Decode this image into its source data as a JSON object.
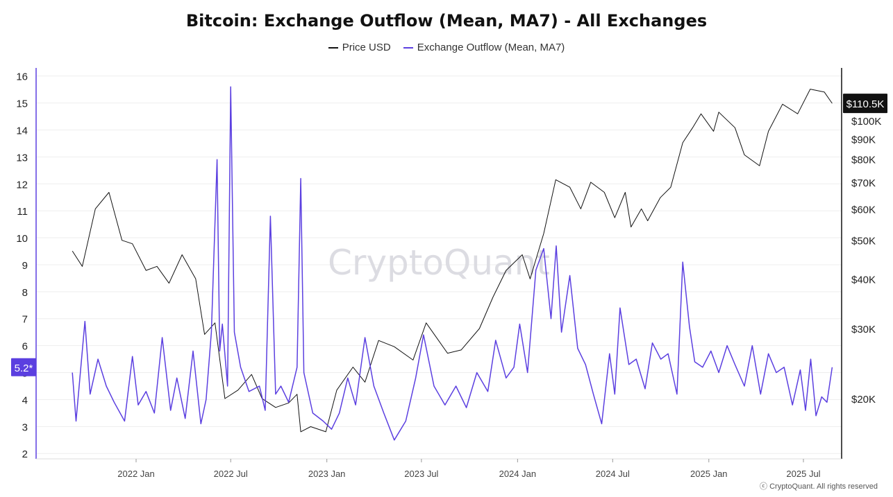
{
  "title": "Bitcoin: Exchange Outflow (Mean, MA7) - All Exchanges",
  "legend": [
    {
      "label": "Price USD",
      "color": "#111111"
    },
    {
      "label": "Exchange Outflow (Mean, MA7)",
      "color": "#5b3fe0"
    }
  ],
  "watermark": "CryptoQuant",
  "footer": "ⓒ CryptoQuant. All rights reserved",
  "chart_data": {
    "type": "line",
    "x_ticks": [
      "2022 Jan",
      "2022 Jul",
      "2023 Jan",
      "2023 Jul",
      "2024 Jan",
      "2024 Jul",
      "2025 Jan",
      "2025 Jul"
    ],
    "left_axis": {
      "ticks": [
        2,
        3,
        4,
        5,
        6,
        7,
        8,
        9,
        10,
        11,
        12,
        13,
        14,
        15,
        16
      ],
      "ylim": [
        1.8,
        16.3
      ]
    },
    "right_axis": {
      "scale": "log",
      "ticks": [
        "$20K",
        "$30K",
        "$40K",
        "$50K",
        "$60K",
        "$70K",
        "$80K",
        "$90K",
        "$100K"
      ],
      "tick_values": [
        20000,
        30000,
        40000,
        50000,
        60000,
        70000,
        80000,
        90000,
        100000
      ]
    },
    "last_price_label": "$110.5K",
    "last_outflow_label": "5.2*",
    "series": [
      {
        "name": "Price USD",
        "axis": "right",
        "color": "#111111",
        "x": [
          "2021-09-01",
          "2021-09-20",
          "2021-10-15",
          "2021-11-10",
          "2021-12-05",
          "2021-12-25",
          "2022-01-20",
          "2022-02-10",
          "2022-03-05",
          "2022-03-30",
          "2022-04-25",
          "2022-05-12",
          "2022-06-01",
          "2022-06-20",
          "2022-07-15",
          "2022-08-10",
          "2022-08-30",
          "2022-09-25",
          "2022-10-20",
          "2022-11-05",
          "2022-11-12",
          "2022-12-01",
          "2022-12-30",
          "2023-01-20",
          "2023-02-20",
          "2023-03-15",
          "2023-04-10",
          "2023-05-10",
          "2023-06-15",
          "2023-07-10",
          "2023-08-20",
          "2023-09-15",
          "2023-10-20",
          "2023-11-15",
          "2023-12-10",
          "2024-01-10",
          "2024-01-25",
          "2024-02-20",
          "2024-03-14",
          "2024-04-10",
          "2024-05-01",
          "2024-05-20",
          "2024-06-15",
          "2024-07-05",
          "2024-07-25",
          "2024-08-05",
          "2024-08-25",
          "2024-09-06",
          "2024-09-30",
          "2024-10-20",
          "2024-11-12",
          "2024-12-01",
          "2024-12-17",
          "2025-01-10",
          "2025-01-20",
          "2025-02-20",
          "2025-03-10",
          "2025-04-08",
          "2025-04-25",
          "2025-05-22",
          "2025-06-20",
          "2025-07-14",
          "2025-08-10",
          "2025-08-25"
        ],
        "y": [
          47000,
          43000,
          60000,
          66000,
          50000,
          49000,
          42000,
          43000,
          39000,
          46000,
          40000,
          29000,
          31000,
          20000,
          21000,
          23000,
          20000,
          19000,
          19500,
          20500,
          16500,
          17000,
          16500,
          21000,
          24000,
          22000,
          28000,
          27000,
          25000,
          31000,
          26000,
          26500,
          30000,
          36000,
          42000,
          46000,
          40000,
          52000,
          71000,
          68000,
          60000,
          70000,
          66000,
          57000,
          66000,
          54000,
          60000,
          56000,
          64000,
          68000,
          88000,
          96000,
          104000,
          94000,
          105000,
          96000,
          82000,
          77000,
          94000,
          110000,
          104000,
          120000,
          118000,
          110500
        ]
      },
      {
        "name": "Exchange Outflow (Mean, MA7)",
        "axis": "left",
        "color": "#5b3fe0",
        "x": [
          "2021-09-01",
          "2021-09-08",
          "2021-09-25",
          "2021-10-05",
          "2021-10-20",
          "2021-11-05",
          "2021-11-20",
          "2021-12-10",
          "2021-12-25",
          "2022-01-05",
          "2022-01-20",
          "2022-02-05",
          "2022-02-20",
          "2022-03-08",
          "2022-03-20",
          "2022-04-05",
          "2022-04-20",
          "2022-05-05",
          "2022-05-15",
          "2022-05-25",
          "2022-06-05",
          "2022-06-10",
          "2022-06-15",
          "2022-06-25",
          "2022-07-01",
          "2022-07-08",
          "2022-07-20",
          "2022-08-05",
          "2022-08-25",
          "2022-09-05",
          "2022-09-15",
          "2022-09-25",
          "2022-10-05",
          "2022-10-20",
          "2022-11-05",
          "2022-11-12",
          "2022-11-18",
          "2022-12-05",
          "2022-12-25",
          "2023-01-10",
          "2023-01-25",
          "2023-02-10",
          "2023-02-25",
          "2023-03-15",
          "2023-04-01",
          "2023-04-20",
          "2023-05-10",
          "2023-06-01",
          "2023-06-20",
          "2023-07-05",
          "2023-07-25",
          "2023-08-15",
          "2023-09-05",
          "2023-09-25",
          "2023-10-15",
          "2023-11-05",
          "2023-11-20",
          "2023-12-10",
          "2023-12-25",
          "2024-01-05",
          "2024-01-20",
          "2024-02-05",
          "2024-02-20",
          "2024-03-05",
          "2024-03-15",
          "2024-03-25",
          "2024-04-10",
          "2024-04-25",
          "2024-05-10",
          "2024-05-25",
          "2024-06-10",
          "2024-06-25",
          "2024-07-05",
          "2024-07-15",
          "2024-08-01",
          "2024-08-15",
          "2024-09-01",
          "2024-09-15",
          "2024-10-01",
          "2024-10-15",
          "2024-11-01",
          "2024-11-12",
          "2024-11-25",
          "2024-12-05",
          "2024-12-20",
          "2025-01-05",
          "2025-01-20",
          "2025-02-05",
          "2025-02-20",
          "2025-03-10",
          "2025-03-25",
          "2025-04-10",
          "2025-04-25",
          "2025-05-10",
          "2025-05-25",
          "2025-06-10",
          "2025-06-25",
          "2025-07-05",
          "2025-07-15",
          "2025-07-25",
          "2025-08-05",
          "2025-08-15",
          "2025-08-25"
        ],
        "y": [
          5.0,
          3.2,
          6.9,
          4.2,
          5.5,
          4.5,
          3.9,
          3.2,
          5.6,
          3.8,
          4.3,
          3.5,
          6.3,
          3.6,
          4.8,
          3.3,
          5.8,
          3.1,
          4.0,
          6.5,
          12.9,
          5.8,
          6.8,
          4.5,
          15.6,
          6.5,
          5.2,
          4.3,
          4.5,
          3.6,
          10.8,
          4.2,
          4.5,
          3.9,
          5.2,
          12.2,
          5.0,
          3.5,
          3.2,
          2.9,
          3.5,
          4.8,
          3.8,
          6.3,
          4.5,
          3.5,
          2.5,
          3.2,
          4.8,
          6.4,
          4.5,
          3.8,
          4.5,
          3.7,
          5.0,
          4.3,
          6.2,
          4.8,
          5.2,
          6.8,
          5.0,
          8.8,
          9.6,
          7.0,
          9.7,
          6.5,
          8.6,
          5.9,
          5.3,
          4.2,
          3.1,
          5.7,
          4.2,
          7.4,
          5.3,
          5.5,
          4.4,
          6.1,
          5.5,
          5.7,
          4.2,
          9.1,
          6.7,
          5.4,
          5.2,
          5.8,
          5.0,
          6.0,
          5.3,
          4.5,
          6.0,
          4.2,
          5.7,
          5.0,
          5.2,
          3.8,
          5.1,
          3.6,
          5.5,
          3.4,
          4.1,
          3.9,
          5.2
        ]
      }
    ]
  }
}
